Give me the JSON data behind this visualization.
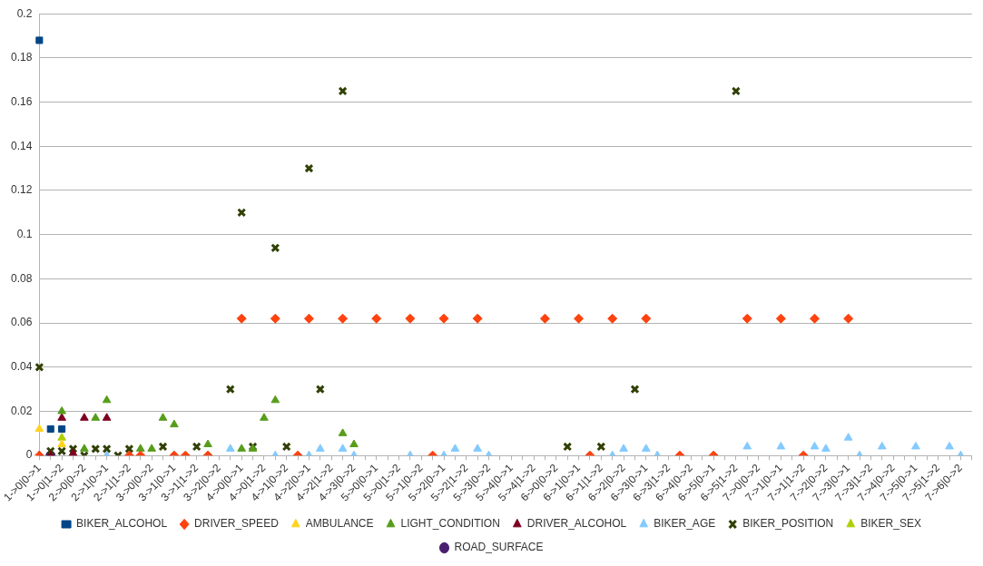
{
  "chart_data": {
    "type": "scatter",
    "categories": [
      "1->0|0->1",
      null,
      "1->0|1->2",
      null,
      "2->0|0->2",
      null,
      "2->1|0->1",
      null,
      "2->1|1->2",
      null,
      "3->0|0->2",
      null,
      "3->1|0->1",
      null,
      "3->1|1->2",
      null,
      "3->2|0->2",
      null,
      "4->0|0->1",
      null,
      "4->0|1->2",
      null,
      "4->1|0->2",
      null,
      "4->2|0->1",
      null,
      "4->2|1->2",
      null,
      "4->3|0->2",
      null,
      "5->0|0->1",
      null,
      "5->0|1->2",
      null,
      "5->1|0->2",
      null,
      "5->2|0->1",
      null,
      "5->2|1->2",
      null,
      "5->3|0->2",
      null,
      "5->4|0->1",
      null,
      "5->4|1->2",
      null,
      "6->0|0->2",
      null,
      "6->1|0->1",
      null,
      "6->1|1->2",
      null,
      "6->2|0->2",
      null,
      "6->3|0->1",
      null,
      "6->3|1->2",
      null,
      "6->4|0->2",
      null,
      "6->5|0->1",
      null,
      "6->5|1->2",
      null,
      "7->0|0->2",
      null,
      "7->1|0->1",
      null,
      "7->1|1->2",
      null,
      "7->2|0->2",
      null,
      "7->3|0->1",
      null,
      "7->3|1->2",
      null,
      "7->4|0->2",
      null,
      "7->5|0->1",
      null,
      "7->5|1->2",
      null,
      "7->6|0->2",
      null
    ],
    "ylim": [
      0,
      0.2
    ],
    "yticks": [
      0,
      0.02,
      0.04,
      0.06,
      0.08,
      0.1,
      0.12,
      0.14,
      0.16,
      0.18,
      0.2
    ],
    "grid": "y",
    "legend": "bottom",
    "series": [
      {
        "name": "BIKER_ALCOHOL",
        "color": "#004586",
        "marker": "square",
        "values": [
          0.188,
          0.012,
          0.012,
          null,
          null,
          null,
          null,
          null,
          null,
          null,
          null,
          null,
          null,
          null,
          null,
          null,
          null,
          null,
          null,
          null,
          null,
          null,
          null,
          null,
          null,
          null,
          null,
          null,
          null,
          null,
          null,
          null,
          null,
          null,
          null,
          null,
          null,
          null,
          null,
          null,
          null,
          null,
          null,
          null,
          null,
          null,
          null,
          null,
          null,
          null,
          null,
          null,
          null,
          null,
          null,
          null,
          null,
          null,
          null,
          null,
          null,
          null,
          null,
          null,
          null,
          null,
          null,
          null,
          null,
          null,
          null,
          null,
          null,
          null,
          null,
          null,
          null,
          null,
          null,
          null,
          null,
          null,
          null,
          null
        ]
      },
      {
        "name": "DRIVER_SPEED",
        "color": "#ff420e",
        "marker": "diamond",
        "values": [
          0,
          null,
          null,
          null,
          null,
          null,
          null,
          null,
          0,
          0,
          null,
          null,
          0,
          0,
          null,
          0,
          null,
          null,
          0.062,
          null,
          null,
          0.062,
          null,
          0,
          0.062,
          null,
          null,
          0.062,
          null,
          null,
          0.062,
          null,
          null,
          0.062,
          null,
          0,
          0.062,
          null,
          null,
          0.062,
          null,
          null,
          null,
          null,
          null,
          0.062,
          null,
          null,
          0.062,
          0,
          null,
          0.062,
          null,
          null,
          0.062,
          null,
          null,
          0,
          null,
          null,
          0,
          null,
          null,
          0.062,
          null,
          null,
          0.062,
          null,
          0,
          0.062,
          null,
          null,
          0.062,
          null,
          null,
          null,
          null,
          null,
          null,
          null,
          null,
          null,
          null,
          null
        ]
      },
      {
        "name": "AMBULANCE",
        "color": "#ffd320",
        "marker": "triangle",
        "values": [
          0.012,
          null,
          0.005,
          null,
          null,
          null,
          null,
          null,
          null,
          null,
          null,
          null,
          null,
          null,
          null,
          null,
          null,
          null,
          null,
          null,
          null,
          null,
          null,
          null,
          null,
          null,
          null,
          null,
          null,
          null,
          null,
          null,
          null,
          null,
          null,
          null,
          null,
          null,
          null,
          null,
          null,
          null,
          null,
          null,
          null,
          null,
          null,
          null,
          null,
          null,
          null,
          null,
          null,
          null,
          null,
          null,
          null,
          null,
          null,
          null,
          null,
          null,
          null,
          null,
          null,
          null,
          null,
          null,
          null,
          null,
          null,
          null,
          null,
          null,
          null,
          null,
          null,
          null,
          null,
          null,
          null,
          null,
          null,
          null
        ]
      },
      {
        "name": "LIGHT_CONDITION",
        "color": "#579d1c",
        "marker": "triangle",
        "values": [
          null,
          null,
          0.02,
          null,
          0.003,
          0.017,
          0.025,
          null,
          null,
          0.003,
          0.003,
          0.017,
          0.014,
          null,
          null,
          0.005,
          null,
          null,
          0.003,
          0.003,
          0.017,
          0.025,
          null,
          null,
          null,
          null,
          null,
          0.01,
          0.005,
          null,
          null,
          null,
          null,
          null,
          null,
          null,
          null,
          null,
          null,
          null,
          null,
          null,
          null,
          null,
          null,
          null,
          null,
          null,
          null,
          null,
          null,
          null,
          null,
          null,
          null,
          null,
          null,
          null,
          null,
          null,
          null,
          null,
          null,
          null,
          null,
          null,
          null,
          null,
          null,
          null,
          null,
          null,
          null,
          null,
          null,
          null,
          null,
          null,
          null,
          null,
          null,
          null,
          null,
          null
        ]
      },
      {
        "name": "DRIVER_ALCOHOL",
        "color": "#7e0021",
        "marker": "triangle",
        "values": [
          0,
          0,
          0.017,
          0.001,
          0.017,
          null,
          0.017,
          null,
          null,
          null,
          null,
          null,
          null,
          null,
          null,
          null,
          null,
          null,
          null,
          null,
          null,
          null,
          null,
          null,
          null,
          null,
          null,
          null,
          null,
          null,
          null,
          null,
          null,
          null,
          null,
          null,
          null,
          null,
          null,
          null,
          null,
          null,
          null,
          null,
          null,
          null,
          null,
          null,
          null,
          null,
          null,
          null,
          null,
          null,
          null,
          null,
          null,
          null,
          null,
          null,
          null,
          null,
          null,
          null,
          null,
          null,
          null,
          null,
          null,
          null,
          null,
          null,
          null,
          null,
          null,
          null,
          null,
          null,
          null,
          null,
          null,
          null,
          null,
          null
        ]
      },
      {
        "name": "BIKER_AGE",
        "color": "#83caff",
        "marker": "triangle",
        "values": [
          null,
          null,
          null,
          null,
          null,
          null,
          0,
          null,
          null,
          null,
          null,
          null,
          0,
          null,
          null,
          0,
          null,
          0.003,
          null,
          null,
          null,
          0,
          null,
          null,
          0,
          0.003,
          null,
          0.003,
          0,
          null,
          null,
          null,
          null,
          0,
          null,
          null,
          0,
          0.003,
          null,
          0.003,
          0,
          null,
          null,
          null,
          null,
          null,
          null,
          null,
          null,
          null,
          null,
          0,
          0.003,
          null,
          0.003,
          0,
          null,
          null,
          null,
          null,
          null,
          null,
          null,
          0.004,
          null,
          null,
          0.004,
          null,
          null,
          0.004,
          0.003,
          null,
          0.008,
          0,
          null,
          0.004,
          null,
          null,
          0.004,
          null,
          null,
          0.004,
          0,
          null
        ]
      },
      {
        "name": "BIKER_POSITION",
        "color": "#314004",
        "marker": "cross",
        "values": [
          0.04,
          0.002,
          0.002,
          0.003,
          0,
          0.003,
          0.003,
          0,
          0.003,
          null,
          null,
          0.004,
          null,
          null,
          0.004,
          null,
          null,
          0.03,
          0.11,
          0.004,
          null,
          0.094,
          0.004,
          null,
          0.13,
          0.03,
          null,
          0.165,
          null,
          null,
          null,
          null,
          null,
          null,
          null,
          null,
          null,
          null,
          null,
          null,
          null,
          null,
          null,
          null,
          null,
          null,
          null,
          0.004,
          null,
          null,
          0.004,
          null,
          null,
          0.03,
          null,
          null,
          null,
          null,
          null,
          null,
          null,
          null,
          0.165,
          null,
          null,
          null,
          null,
          null,
          null,
          null,
          null,
          null,
          null,
          null,
          null,
          null,
          null,
          null,
          null,
          null,
          null,
          null,
          null,
          null
        ]
      },
      {
        "name": "BIKER_SEX",
        "color": "#aecf00",
        "marker": "triangle",
        "values": [
          null,
          null,
          0.008,
          null,
          null,
          null,
          null,
          null,
          null,
          null,
          null,
          null,
          null,
          null,
          null,
          null,
          null,
          null,
          null,
          null,
          null,
          null,
          null,
          null,
          null,
          null,
          null,
          null,
          null,
          null,
          null,
          null,
          null,
          null,
          null,
          null,
          null,
          null,
          null,
          null,
          null,
          null,
          null,
          null,
          null,
          null,
          null,
          null,
          null,
          null,
          null,
          null,
          null,
          null,
          null,
          null,
          null,
          null,
          null,
          null,
          null,
          null,
          null,
          null,
          null,
          null,
          null,
          null,
          null,
          null,
          null,
          null,
          null,
          null,
          null,
          null,
          null,
          null,
          null,
          null,
          null,
          null,
          null,
          null
        ]
      },
      {
        "name": "ROAD_SURFACE",
        "color": "#4b1f6f",
        "marker": "circle",
        "values": [
          null,
          0,
          null,
          null,
          null,
          null,
          null,
          null,
          null,
          null,
          null,
          null,
          null,
          null,
          null,
          null,
          null,
          null,
          null,
          null,
          null,
          null,
          null,
          null,
          null,
          null,
          null,
          null,
          null,
          null,
          null,
          null,
          null,
          null,
          null,
          null,
          null,
          null,
          null,
          null,
          null,
          null,
          null,
          null,
          null,
          null,
          null,
          null,
          null,
          null,
          null,
          null,
          null,
          null,
          null,
          null,
          null,
          null,
          null,
          null,
          null,
          null,
          null,
          null,
          null,
          null,
          null,
          null,
          null,
          null,
          null,
          null,
          null,
          null,
          null,
          null,
          null,
          null,
          null,
          null,
          null,
          null,
          null,
          null
        ]
      }
    ]
  }
}
